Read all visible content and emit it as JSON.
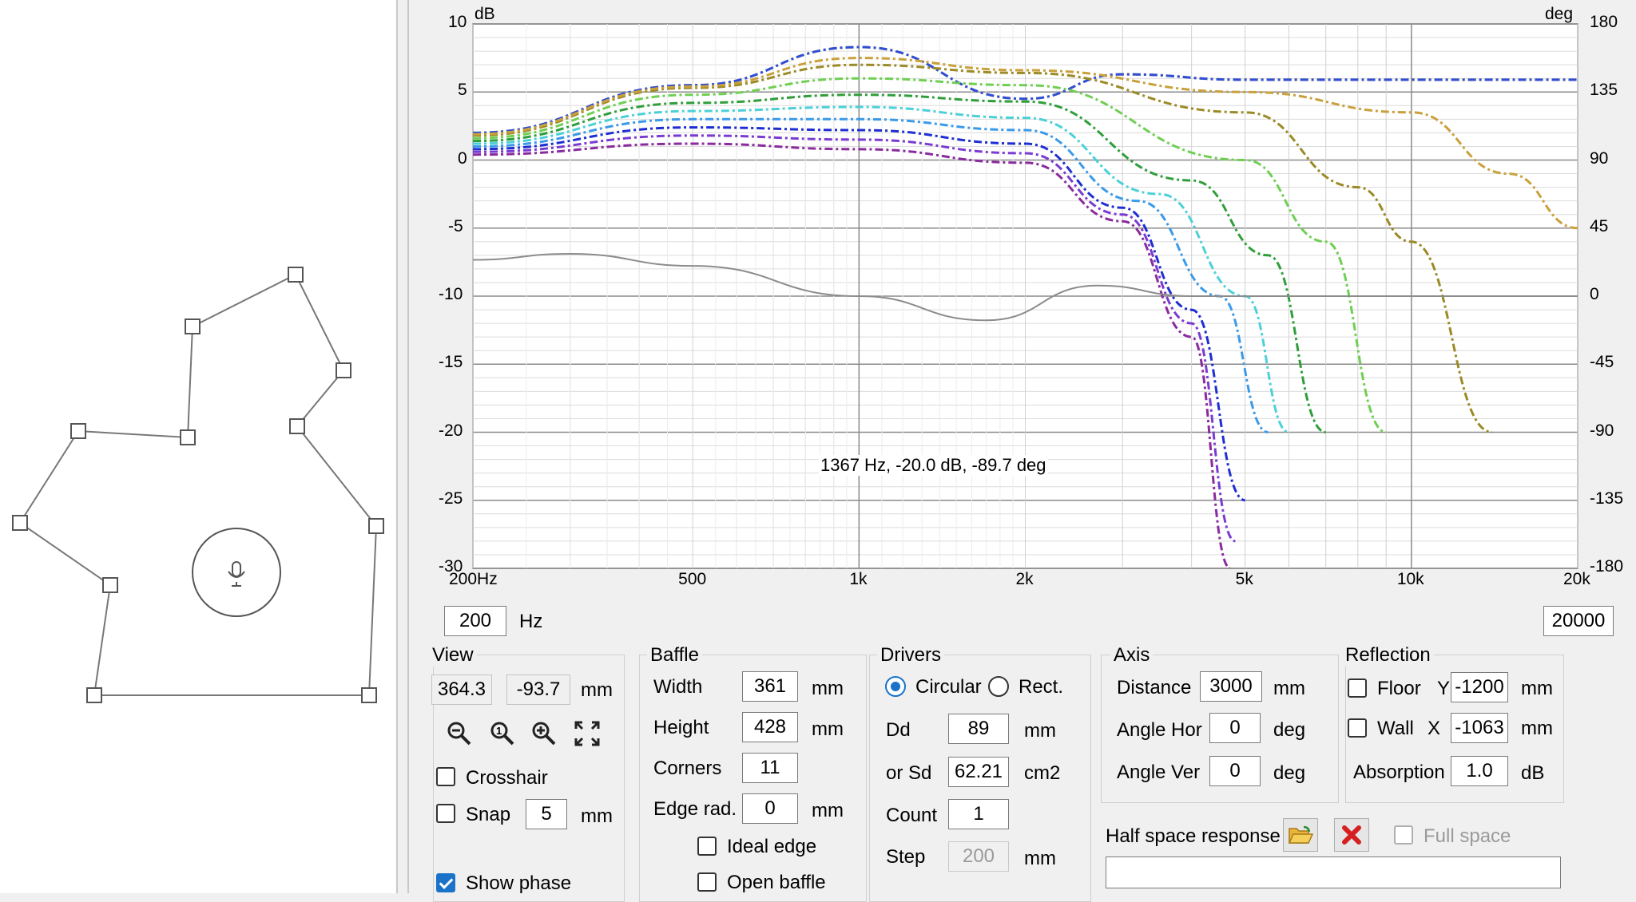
{
  "chart": {
    "y_unit_left": "dB",
    "y_unit_right": "deg",
    "y_ticks_left": [
      "10",
      "5",
      "0",
      "-5",
      "-10",
      "-15",
      "-20",
      "-25",
      "-30"
    ],
    "y_ticks_right": [
      "180",
      "135",
      "90",
      "45",
      "0",
      "-45",
      "-90",
      "-135",
      "-180"
    ],
    "x_ticks": [
      "200Hz",
      "500",
      "1k",
      "2k",
      "5k",
      "10k",
      "20k"
    ],
    "readout": "1367 Hz, -20.0 dB, -89.7 deg",
    "colors": {
      "phase": "#8c8c8c",
      "orange": "#d2822a",
      "blue": "#2d4fd8",
      "olive": "#9b8a26",
      "gold": "#c9a03a",
      "green": "#2f9e3a",
      "lightgreen": "#6fcf52",
      "darkgreen": "#1f7a28",
      "cyan": "#4cd0d8",
      "skyblue": "#3a9ae8",
      "navy": "#1e2ed2",
      "violet": "#7a3bd2",
      "purple": "#8a2a9e"
    }
  },
  "chart_data": {
    "type": "line",
    "x_scale": "log",
    "xlim": [
      200,
      20000
    ],
    "ylim": [
      -30,
      10
    ],
    "ylim_right": [
      -180,
      180
    ],
    "xlabel": "",
    "ylabel": "dB",
    "ylabel_right": "deg",
    "series": [
      {
        "color": "#d2822a",
        "x": [
          200,
          500,
          1000,
          2000,
          3000,
          5000,
          10000,
          20000
        ],
        "values": [
          2.0,
          5.5,
          8.3,
          4.5,
          6.3,
          5.9,
          5.9,
          5.9
        ]
      },
      {
        "color": "#2d4fd8",
        "x": [
          200,
          500,
          1000,
          2000,
          3000,
          5000,
          10000,
          20000
        ],
        "values": [
          2.0,
          5.5,
          8.3,
          4.5,
          6.3,
          5.9,
          5.9,
          5.9
        ]
      },
      {
        "color": "#9b8a26",
        "x": [
          200,
          500,
          1000,
          2000,
          5000,
          8000,
          10000,
          14000
        ],
        "values": [
          1.8,
          5.3,
          7.0,
          6.4,
          3.5,
          -2.0,
          -6.0,
          -20.0
        ]
      },
      {
        "color": "#c9a03a",
        "x": [
          200,
          500,
          1000,
          2000,
          5000,
          10000,
          15000,
          20000
        ],
        "values": [
          1.9,
          5.4,
          7.5,
          6.6,
          5.0,
          3.5,
          -1.0,
          -5.0
        ]
      },
      {
        "color": "#6fcf52",
        "x": [
          200,
          500,
          1000,
          2000,
          5000,
          7000,
          9000
        ],
        "values": [
          1.6,
          4.8,
          6.0,
          5.5,
          0.0,
          -6.0,
          -20.0
        ]
      },
      {
        "color": "#2f9e3a",
        "x": [
          200,
          500,
          1000,
          2000,
          4000,
          5500,
          7000
        ],
        "values": [
          1.4,
          4.2,
          4.8,
          4.3,
          -1.5,
          -7.0,
          -20.0
        ]
      },
      {
        "color": "#4cd0d8",
        "x": [
          200,
          500,
          1000,
          2000,
          3500,
          5000,
          6000
        ],
        "values": [
          1.2,
          3.6,
          3.9,
          3.1,
          -2.5,
          -10.0,
          -20.0
        ]
      },
      {
        "color": "#3a9ae8",
        "x": [
          200,
          500,
          1000,
          2000,
          3200,
          4500,
          5500
        ],
        "values": [
          1.0,
          3.0,
          3.0,
          2.2,
          -3.0,
          -10.0,
          -20.0
        ]
      },
      {
        "color": "#1e2ed2",
        "x": [
          200,
          500,
          1000,
          2000,
          3000,
          4000,
          5000
        ],
        "values": [
          0.8,
          2.4,
          2.2,
          1.2,
          -3.5,
          -11.0,
          -25.0
        ]
      },
      {
        "color": "#7a3bd2",
        "x": [
          200,
          500,
          1000,
          2000,
          3000,
          4000,
          4800
        ],
        "values": [
          0.6,
          1.8,
          1.5,
          0.5,
          -4.0,
          -12.0,
          -28.0
        ]
      },
      {
        "color": "#8a2a9e",
        "x": [
          200,
          500,
          1000,
          2000,
          3000,
          4000,
          4700
        ],
        "values": [
          0.4,
          1.2,
          0.8,
          -0.2,
          -4.5,
          -13.0,
          -30.0
        ]
      },
      {
        "color": "#8c8c8c",
        "axis": "right",
        "x": [
          200,
          300,
          500,
          1000,
          1700,
          2700,
          4000,
          10000,
          20000
        ],
        "values": [
          24,
          28,
          20,
          0,
          -16,
          7,
          0,
          0,
          0
        ]
      }
    ]
  },
  "left_canvas": {
    "mic_icon": "microphone-icon"
  },
  "freq": {
    "min": "200",
    "min_unit": "Hz",
    "max": "20000"
  },
  "view": {
    "title": "View",
    "x": "364.3",
    "y": "-93.7",
    "unit": "mm",
    "crosshair_label": "Crosshair",
    "snap_label": "Snap",
    "snap_value": "5",
    "snap_unit": "mm",
    "show_phase_label": "Show phase"
  },
  "baffle": {
    "title": "Baffle",
    "width_label": "Width",
    "width": "361",
    "width_unit": "mm",
    "height_label": "Height",
    "height": "428",
    "height_unit": "mm",
    "corners_label": "Corners",
    "corners": "11",
    "edge_label": "Edge rad.",
    "edge": "0",
    "edge_unit": "mm",
    "ideal_edge_label": "Ideal edge",
    "open_baffle_label": "Open baffle"
  },
  "drivers": {
    "title": "Drivers",
    "circular_label": "Circular",
    "rect_label": "Rect.",
    "dd_label": "Dd",
    "dd": "89",
    "dd_unit": "mm",
    "sd_label": "or Sd",
    "sd": "62.21",
    "sd_unit": "cm2",
    "count_label": "Count",
    "count": "1",
    "step_label": "Step",
    "step": "200",
    "step_unit": "mm"
  },
  "axis": {
    "title": "Axis",
    "distance_label": "Distance",
    "distance": "3000",
    "distance_unit": "mm",
    "hor_label": "Angle Hor",
    "hor": "0",
    "hor_unit": "deg",
    "ver_label": "Angle Ver",
    "ver": "0",
    "ver_unit": "deg"
  },
  "reflection": {
    "title": "Reflection",
    "floor_label": "Floor",
    "floor_axis": "Y",
    "floor": "-1200",
    "floor_unit": "mm",
    "wall_label": "Wall",
    "wall_axis": "X",
    "wall": "-1063",
    "wall_unit": "mm",
    "absorption_label": "Absorption",
    "absorption": "1.0",
    "absorption_unit": "dB"
  },
  "half_space": {
    "label": "Half space response",
    "full_space_label": "Full space",
    "path": ""
  }
}
